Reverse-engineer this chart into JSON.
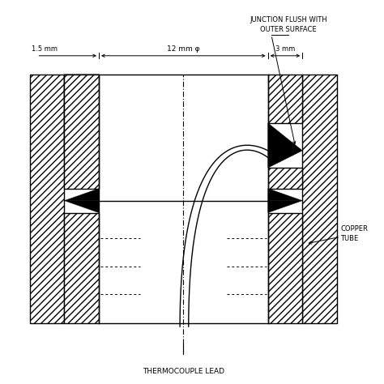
{
  "title": "THERMOCOUPLE LEAD",
  "annotation_junction": "JUNCTION FLUSH WITH\nOUTER SURFACE",
  "annotation_copper": "COPPER\nTUBE",
  "dim_15": "1.5 mm",
  "dim_12": "12 mm φ",
  "dim_3": "3 mm",
  "bg_color": "#ffffff",
  "line_color": "#000000",
  "fig_width": 4.74,
  "fig_height": 4.74,
  "dpi": 100
}
